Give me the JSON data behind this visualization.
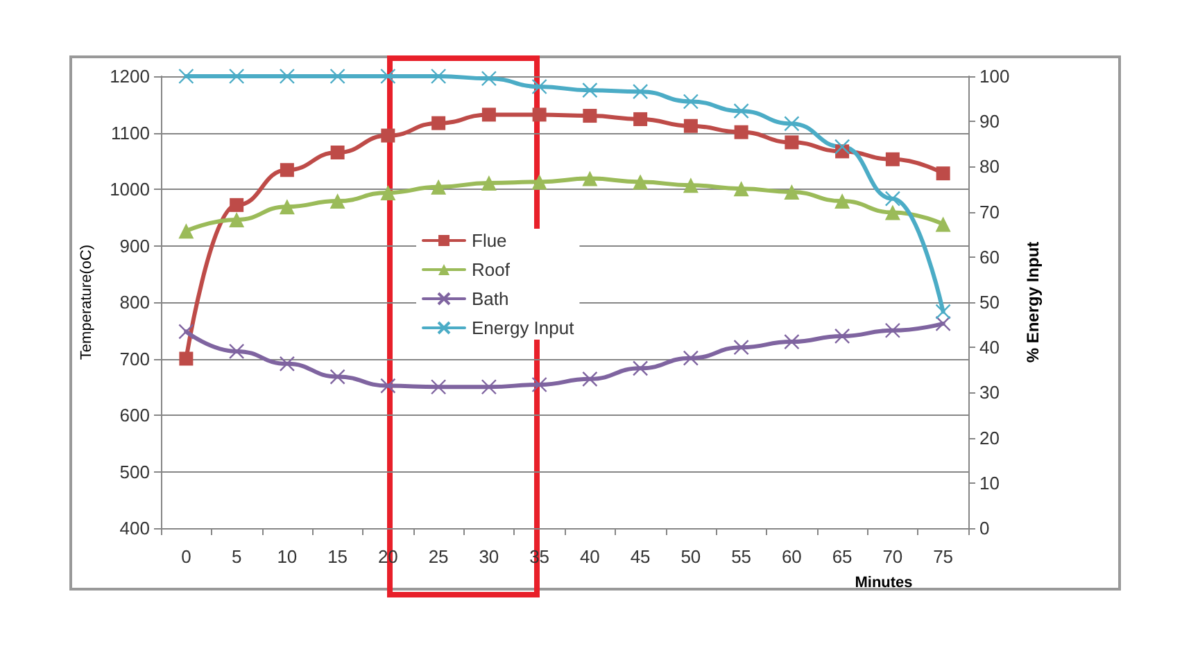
{
  "chart_data": {
    "type": "line",
    "xlabel": "Minutes",
    "ylabel": "Temperature(oC)",
    "y2label": "% Energy Input",
    "categories": [
      "0",
      "5",
      "10",
      "15",
      "20",
      "25",
      "30",
      "35",
      "40",
      "45",
      "50",
      "55",
      "60",
      "65",
      "70",
      "75"
    ],
    "ylim": [
      400,
      1200
    ],
    "yticks": [
      400,
      500,
      600,
      700,
      800,
      900,
      1000,
      1100,
      1200
    ],
    "y2lim": [
      0,
      100
    ],
    "y2ticks": [
      0,
      10,
      20,
      30,
      40,
      50,
      60,
      70,
      80,
      90,
      100
    ],
    "grid": "y",
    "legend": "center",
    "series": [
      {
        "name": "Flue",
        "color": "#be4b48",
        "marker": "square",
        "values": [
          700,
          972,
          1034,
          1065,
          1095,
          1117,
          1132,
          1132,
          1130,
          1124,
          1112,
          1101,
          1083,
          1067,
          1053,
          1028
        ]
      },
      {
        "name": "Roof",
        "color": "#9bbb59",
        "marker": "triangle",
        "values": [
          926,
          946,
          969,
          979,
          994,
          1004,
          1011,
          1013,
          1019,
          1013,
          1007,
          1001,
          995,
          979,
          959,
          938
        ]
      },
      {
        "name": "Bath",
        "color": "#7f64a0",
        "marker": "cross",
        "values": [
          748,
          713,
          691,
          668,
          652,
          650,
          650,
          654,
          664,
          683,
          701,
          720,
          730,
          740,
          750,
          762
        ]
      },
      {
        "name": "Energy Input",
        "color": "#4bacc6",
        "marker": "cross",
        "axis": "y2",
        "values": [
          100,
          100,
          100,
          100,
          100,
          100,
          99.5,
          97.7,
          96.9,
          96.6,
          94.4,
          92.3,
          89.5,
          84.4,
          72.9,
          47.9
        ]
      }
    ]
  }
}
